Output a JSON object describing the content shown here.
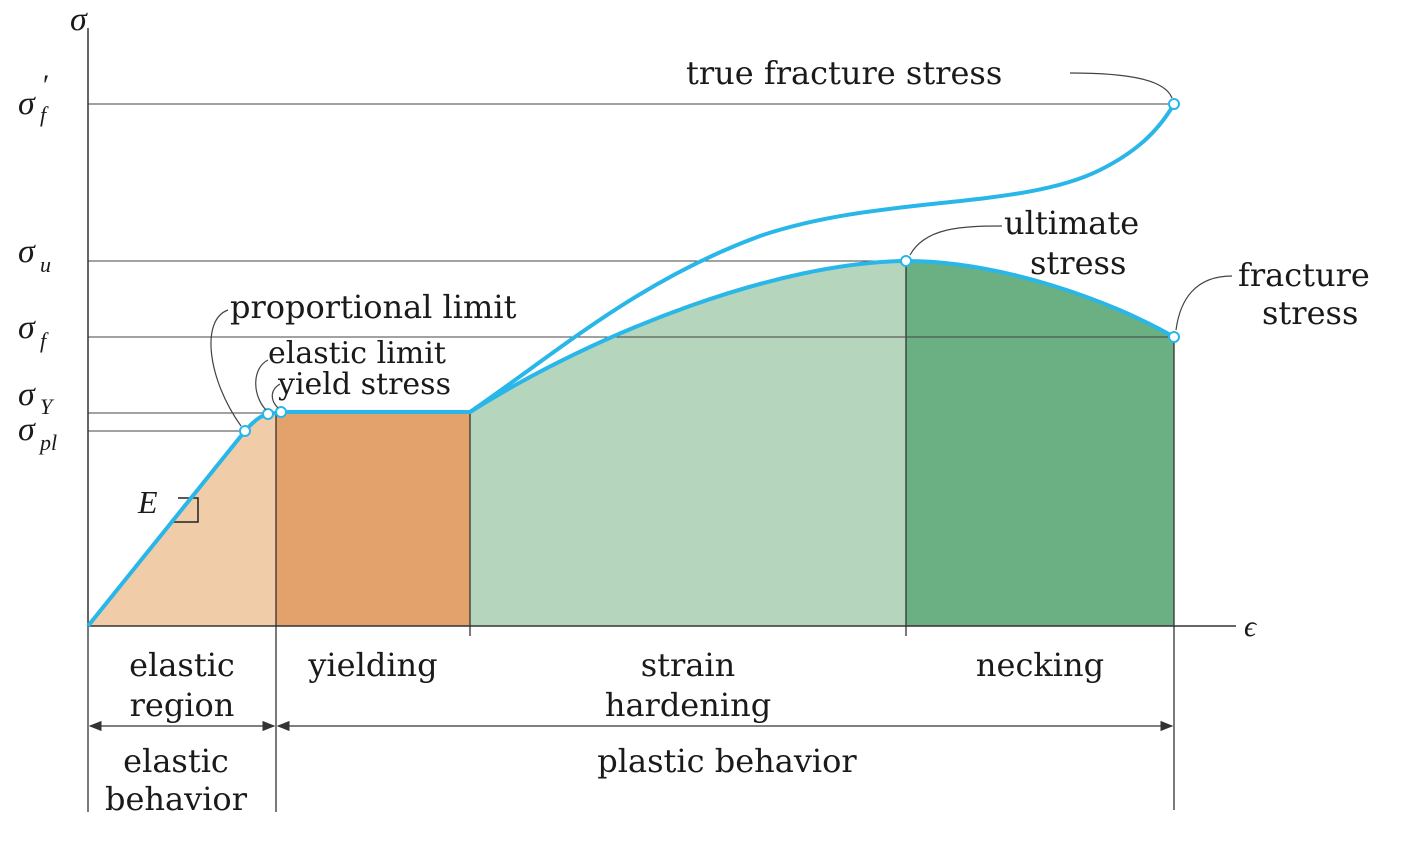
{
  "axes": {
    "y_symbol": "σ",
    "x_symbol": "ϵ",
    "ticks": {
      "true_fracture": {
        "base": "σ",
        "sub": "f",
        "prime": "′"
      },
      "ultimate": {
        "base": "σ",
        "sub": "u"
      },
      "fracture": {
        "base": "σ",
        "sub": "f"
      },
      "yield": {
        "base": "σ",
        "sub": "Y"
      },
      "proportional": {
        "base": "σ",
        "sub": "pl"
      }
    }
  },
  "annotations": {
    "true_fracture_stress": "true fracture stress",
    "ultimate_1": "ultimate",
    "ultimate_2": "stress",
    "fracture_1": "fracture",
    "fracture_2": "stress",
    "proportional_limit": "proportional limit",
    "elastic_limit": "elastic limit",
    "yield_stress": "yield stress",
    "modulus": "E"
  },
  "regions": {
    "elastic_region_1": "elastic",
    "elastic_region_2": "region",
    "yielding": "yielding",
    "strain_hardening_1": "strain",
    "strain_hardening_2": "hardening",
    "necking": "necking",
    "elastic_behavior_1": "elastic",
    "elastic_behavior_2": "behavior",
    "plastic_behavior": "plastic behavior"
  },
  "colors": {
    "curve": "#29b6e8",
    "elastic_fill": "#f0cda8",
    "yielding_fill": "#e3a26b",
    "hardening_fill": "#b5d6bc",
    "necking_fill": "#6bb083",
    "line": "#333333"
  }
}
